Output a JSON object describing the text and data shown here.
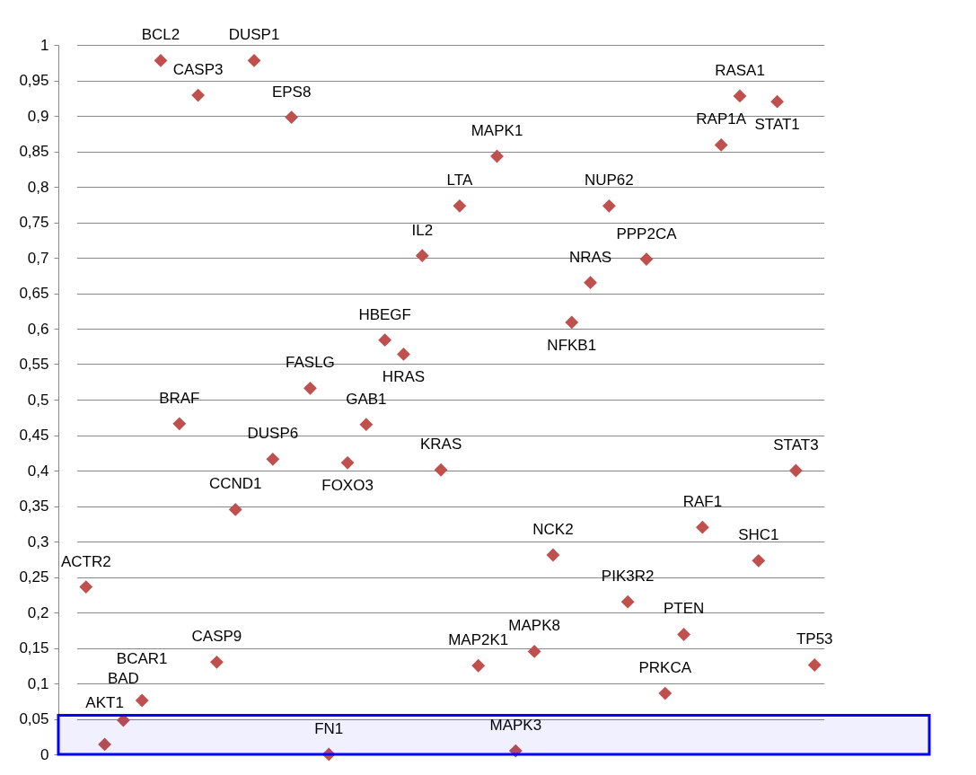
{
  "chart_data": {
    "type": "scatter",
    "categories": [
      "ACTR2",
      "AKT1",
      "BAD",
      "BCAR1",
      "BCL2",
      "BRAF",
      "CASP3",
      "CASP9",
      "CCND1",
      "DUSP1",
      "DUSP6",
      "EPS8",
      "FASLG",
      "FN1",
      "FOXO3",
      "GAB1",
      "HBEGF",
      "HRAS",
      "IL2",
      "KRAS",
      "LTA",
      "MAP2K1",
      "MAPK1",
      "MAPK3",
      "MAPK8",
      "NCK2",
      "NFKB1",
      "NRAS",
      "NUP62",
      "PIK3R2",
      "PPP2CA",
      "PRKCA",
      "PTEN",
      "RAF1",
      "RAP1A",
      "RASA1",
      "SHC1",
      "STAT1",
      "STAT3",
      "TP53"
    ],
    "series": [
      {
        "color": "#c0504d",
        "values": [
          0.236,
          0.014,
          0.048,
          0.076,
          0.978,
          0.466,
          0.929,
          0.13,
          0.345,
          0.978,
          0.416,
          0.898,
          0.516,
          0,
          0.411,
          0.465,
          0.584,
          0.564,
          0.703,
          0.401,
          0.773,
          0.125,
          0.843,
          0.005,
          0.145,
          0.281,
          0.609,
          0.665,
          0.773,
          0.215,
          0.698,
          0.086,
          0.169,
          0.32,
          0.859,
          0.928,
          0.273,
          0.92,
          0.4,
          0.126
        ]
      }
    ],
    "ylim": [
      0,
      1
    ],
    "yticks": [
      0,
      {
        "value": 0.05,
        "label": "0,05"
      },
      {
        "value": 0.1,
        "label": "0,1"
      },
      {
        "value": 0.15,
        "label": "0,15"
      },
      {
        "value": 0.2,
        "label": "0,2"
      },
      {
        "value": 0.25,
        "label": "0,25"
      },
      {
        "value": 0.3,
        "label": "0,3"
      },
      {
        "value": 0.35,
        "label": "0,35"
      },
      {
        "value": 0.4,
        "label": "0,4"
      },
      {
        "value": 0.45,
        "label": "0,45"
      },
      {
        "value": 0.5,
        "label": "0,5"
      },
      {
        "value": 0.55,
        "label": "0,55"
      },
      {
        "value": 0.6,
        "label": "0,6"
      },
      {
        "value": 0.65,
        "label": "0,65"
      },
      {
        "value": 0.7,
        "label": "0,7"
      },
      {
        "value": 0.75,
        "label": "0,75"
      },
      {
        "value": 0.8,
        "label": "0,8"
      },
      {
        "value": 0.85,
        "label": "0,85"
      },
      {
        "value": 0.9,
        "label": "0,9"
      },
      {
        "value": 0.95,
        "label": "0,95"
      },
      1
    ],
    "bands": [
      {
        "axis": "y",
        "from": 0,
        "to": 0.055,
        "color": "#0000ff"
      }
    ],
    "grid": "y",
    "tick_labels": "y",
    "marker": "diamond"
  }
}
